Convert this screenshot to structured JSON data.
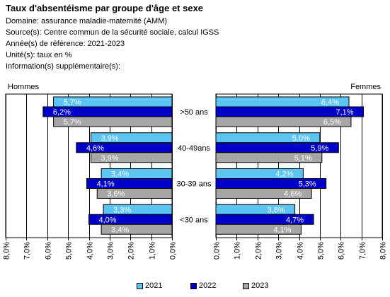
{
  "header": {
    "title": "Taux d'absentéisme par groupe d'âge et sexe",
    "domain": "Domaine: assurance maladie-maternité (AMM)",
    "source": "Source(s): Centre commun de la sécurité sociale, calcul IGSS",
    "years": "Année(s) de référence: 2021-2023",
    "unit": "Unité(s): taux en %",
    "info": "Information(s) supplémentaire(s):"
  },
  "chart_data": {
    "type": "bar",
    "orientation": "horizontal-butterfly",
    "categories": [
      ">50 ans",
      "40-49ans",
      "30-39 ans",
      "<30 ans"
    ],
    "panels": [
      {
        "name": "Hommes",
        "direction": "reversed",
        "xlim": [
          0,
          8
        ],
        "ticks": [
          "0,0%",
          "1,0%",
          "2,0%",
          "3,0%",
          "4,0%",
          "5,0%",
          "6,0%",
          "7,0%",
          "8,0%"
        ],
        "series": [
          {
            "name": "2021",
            "values": [
              5.7,
              3.9,
              3.4,
              3.3
            ],
            "labels": [
              "5,7%",
              "3,9%",
              "3,4%",
              "3,3%"
            ]
          },
          {
            "name": "2022",
            "values": [
              6.2,
              4.6,
              4.1,
              4.0
            ],
            "labels": [
              "6,2%",
              "4,6%",
              "4,1%",
              "4,0%"
            ]
          },
          {
            "name": "2023",
            "values": [
              5.7,
              3.9,
              3.6,
              3.4
            ],
            "labels": [
              "5,7%",
              "3,9%",
              "3,6%",
              "3,4%"
            ]
          }
        ]
      },
      {
        "name": "Femmes",
        "direction": "normal",
        "xlim": [
          0,
          8
        ],
        "ticks": [
          "0,0%",
          "1,0%",
          "2,0%",
          "3,0%",
          "4,0%",
          "5,0%",
          "6,0%",
          "7,0%",
          "8,0%"
        ],
        "series": [
          {
            "name": "2021",
            "values": [
              6.4,
              5.0,
              4.2,
              3.8
            ],
            "labels": [
              "6,4%",
              "5,0%",
              "4,2%",
              "3,8%"
            ]
          },
          {
            "name": "2022",
            "values": [
              7.1,
              5.9,
              5.3,
              4.7
            ],
            "labels": [
              "7,1%",
              "5,9%",
              "5,3%",
              "4,7%"
            ]
          },
          {
            "name": "2023",
            "values": [
              6.5,
              5.1,
              4.6,
              4.1
            ],
            "labels": [
              "6,5%",
              "5,1%",
              "4,6%",
              "4,1%"
            ]
          }
        ]
      }
    ],
    "colors": [
      "#5bc4f1",
      "#0000c8",
      "#a6a6a6"
    ],
    "label_colors": [
      "#ffffff",
      "#ffffff",
      "#ffffff"
    ],
    "grid": true,
    "legend": "bottom"
  }
}
